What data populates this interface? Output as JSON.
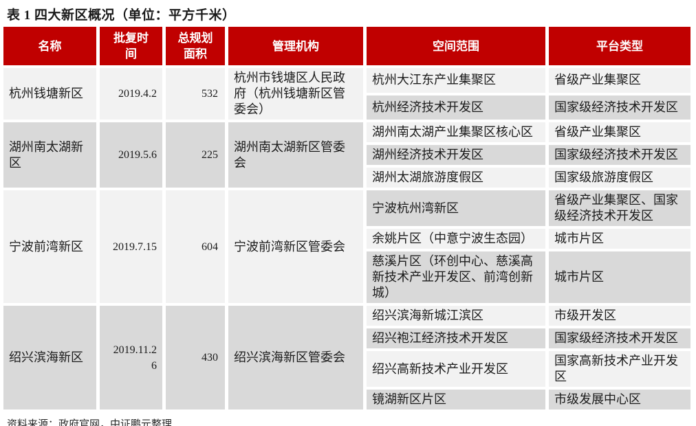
{
  "title": "表 1 四大新区概况（单位：平方千米）",
  "source_note": "资料来源：政府官网，中证鹏元整理",
  "colors": {
    "header_bg": "#C00000",
    "row_light": "#F2F2F2",
    "row_dark": "#D9D9D9",
    "header_text": "#FFFFFF"
  },
  "table": {
    "headers": [
      "名称",
      "批复时间",
      "总规划面积",
      "管理机构",
      "空间范围",
      "平台类型"
    ],
    "groups": [
      {
        "name": "杭州钱塘新区",
        "approval_date": "2019.4.2",
        "planned_area": "532",
        "agency": "杭州市钱塘区人民政府（杭州钱塘新区管委会）",
        "shade": "light",
        "sub_rows": [
          {
            "scope": "杭州大江东产业集聚区",
            "platform": "省级产业集聚区",
            "shade": "light"
          },
          {
            "scope": "杭州经济技术开发区",
            "platform": "国家级经济技术开发区",
            "shade": "dark"
          }
        ]
      },
      {
        "name": "湖州南太湖新区",
        "approval_date": "2019.5.6",
        "planned_area": "225",
        "agency": "湖州南太湖新区管委会",
        "shade": "dark",
        "sub_rows": [
          {
            "scope": "湖州南太湖产业集聚区核心区",
            "platform": "省级产业集聚区",
            "shade": "light"
          },
          {
            "scope": "湖州经济技术开发区",
            "platform": "国家级经济技术开发区",
            "shade": "dark"
          },
          {
            "scope": "湖州太湖旅游度假区",
            "platform": "国家级旅游度假区",
            "shade": "light"
          }
        ]
      },
      {
        "name": "宁波前湾新区",
        "approval_date": "2019.7.15",
        "planned_area": "604",
        "agency": "宁波前湾新区管委会",
        "shade": "light",
        "sub_rows": [
          {
            "scope": "宁波杭州湾新区",
            "platform": "省级产业集聚区、国家级经济技术开发区",
            "shade": "dark"
          },
          {
            "scope": "余姚片区（中意宁波生态园）",
            "platform": "城市片区",
            "shade": "light"
          },
          {
            "scope": "慈溪片区（环创中心、慈溪高新技术产业开发区、前湾创新城）",
            "platform": "城市片区",
            "shade": "dark"
          }
        ]
      },
      {
        "name": "绍兴滨海新区",
        "approval_date": "2019.11.26",
        "planned_area": "430",
        "agency": "绍兴滨海新区管委会",
        "shade": "dark",
        "sub_rows": [
          {
            "scope": "绍兴滨海新城江滨区",
            "platform": "市级开发区",
            "shade": "light"
          },
          {
            "scope": "绍兴袍江经济技术开发区",
            "platform": "国家级经济技术开发区",
            "shade": "dark"
          },
          {
            "scope": "绍兴高新技术产业开发区",
            "platform": "国家高新技术产业开发区",
            "shade": "light"
          },
          {
            "scope": "镜湖新区片区",
            "platform": "市级发展中心区",
            "shade": "dark"
          }
        ]
      }
    ]
  }
}
